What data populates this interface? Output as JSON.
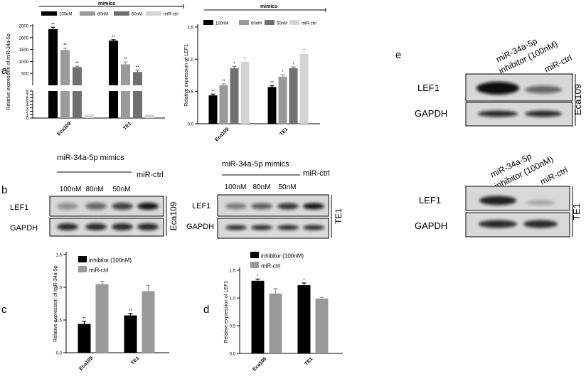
{
  "panels": {
    "a": "a",
    "b": "b",
    "c": "c",
    "d": "d",
    "e": "e"
  },
  "colors": {
    "100nM": "#000000",
    "80nM": "#9a9a9a",
    "50nM": "#707070",
    "ctrl": "#d4d4d4",
    "inhibitor": "#000000",
    "mir_ctrl": "#9a9a9a",
    "blot_bg": "#d8d8d8",
    "band": "#111111"
  },
  "chart_data": [
    {
      "type": "bar",
      "panel": "a-left",
      "header": "mimics",
      "ylabel": "Relative expression of miR-34a-5p",
      "categories": [
        "Eca109",
        "TE1"
      ],
      "broken_axis": true,
      "lower_ticks": [
        "0",
        "1",
        "2",
        "3",
        "4",
        "5",
        "6",
        "7",
        "8"
      ],
      "upper_ticks": [
        "0",
        "500",
        "1000",
        "1500",
        "2000",
        "2500"
      ],
      "series": [
        {
          "name": "100nM",
          "values": [
            2350,
            1870
          ],
          "errors": [
            80,
            40
          ],
          "stars": [
            "**",
            "**"
          ]
        },
        {
          "name": "80nM",
          "values": [
            1480,
            880
          ],
          "errors": [
            80,
            100
          ],
          "stars": [
            "**",
            "**"
          ]
        },
        {
          "name": "50nM",
          "values": [
            760,
            560
          ],
          "errors": [
            40,
            80
          ],
          "stars": [
            "**",
            "**"
          ]
        },
        {
          "name": "miR-ctrl",
          "values": [
            1.0,
            1.0
          ],
          "errors": [
            0.05,
            0.05
          ],
          "stars": [
            "",
            ""
          ]
        }
      ]
    },
    {
      "type": "bar",
      "panel": "a-right",
      "header": "mimics",
      "ylabel": "Relative expression of LEF1",
      "categories": [
        "Eca109",
        "TE1"
      ],
      "ylim": [
        0,
        1.5
      ],
      "ticks": [
        "0.0",
        "0.5",
        "1.0",
        "1.5"
      ],
      "series": [
        {
          "name": "100nM",
          "values": [
            0.44,
            0.57
          ],
          "errors": [
            0.02,
            0.02
          ],
          "stars": [
            "**",
            "**"
          ]
        },
        {
          "name": "80nM",
          "values": [
            0.6,
            0.73
          ],
          "errors": [
            0.02,
            0.03
          ],
          "stars": [
            "**",
            "*"
          ]
        },
        {
          "name": "50nM",
          "values": [
            0.86,
            0.86
          ],
          "errors": [
            0.03,
            0.02
          ],
          "stars": [
            "*",
            "*"
          ]
        },
        {
          "name": "miR-ctrl",
          "values": [
            0.96,
            1.08
          ],
          "errors": [
            0.07,
            0.08
          ],
          "stars": [
            "",
            ""
          ]
        }
      ]
    },
    {
      "type": "bar",
      "panel": "c",
      "ylabel": "Relative expression of miR-34a-5p",
      "categories": [
        "Eca109",
        "TE1"
      ],
      "ylim": [
        0,
        1.5
      ],
      "ticks": [
        "0.0",
        "0.5",
        "1.0",
        "1.5"
      ],
      "series": [
        {
          "name": "inhibitor (100nM)",
          "values": [
            0.44,
            0.57
          ],
          "errors": [
            0.04,
            0.03
          ],
          "stars": [
            "**",
            "**"
          ]
        },
        {
          "name": "miR-ctrl",
          "values": [
            1.05,
            0.94
          ],
          "errors": [
            0.04,
            0.09
          ],
          "stars": [
            "",
            ""
          ]
        }
      ]
    },
    {
      "type": "bar",
      "panel": "d",
      "ylabel": "Relative expression of LEF1",
      "categories": [
        "Eca109",
        "TE1"
      ],
      "ylim": [
        0,
        1.5
      ],
      "ticks": [
        "0.0",
        "0.5",
        "1.0",
        "1.5"
      ],
      "series": [
        {
          "name": "inhibitor (100nM)",
          "values": [
            1.31,
            1.23
          ],
          "errors": [
            0.03,
            0.04
          ],
          "stars": [
            "*",
            "*"
          ]
        },
        {
          "name": "miR-ctrl",
          "values": [
            1.08,
            0.99
          ],
          "errors": [
            0.09,
            0.02
          ],
          "stars": [
            "",
            ""
          ]
        }
      ]
    }
  ],
  "blots": {
    "b_left": {
      "header": "miR-34a-5p mimics",
      "ctrl": "miR-ctrl",
      "lanes": [
        "100nM",
        "80nM",
        "50nM"
      ],
      "rows": [
        "LEF1",
        "GAPDH"
      ],
      "cell": "Eca109",
      "lef1": [
        0.35,
        0.55,
        0.75,
        0.95
      ],
      "gapdh": [
        0.85,
        0.85,
        0.85,
        0.85
      ]
    },
    "b_right": {
      "header": "miR-34a-5p mimics",
      "ctrl": "miR-ctrl",
      "lanes": [
        "100nM",
        "80nM",
        "50nM"
      ],
      "rows": [
        "LEF1",
        "GAPDH"
      ],
      "cell": "TE1",
      "lef1": [
        0.45,
        0.6,
        0.8,
        0.95
      ],
      "gapdh": [
        0.85,
        0.85,
        0.85,
        0.85
      ]
    },
    "e_top": {
      "lane1a": "miR-34a-5p",
      "lane1b": "inhibitor (100nM)",
      "lane2": "miR-ctrl",
      "rows": [
        "LEF1",
        "GAPDH"
      ],
      "cell": "Eca109",
      "lef1": [
        1.0,
        0.55
      ],
      "gapdh": [
        0.85,
        0.85
      ]
    },
    "e_bottom": {
      "lane1a": "miR-34a-5p",
      "lane1b": "inhibitor (100nM)",
      "lane2": "miR-ctrl",
      "rows": [
        "LEF1",
        "GAPDH"
      ],
      "cell": "TE1",
      "lef1": [
        0.9,
        0.25
      ],
      "gapdh": [
        0.85,
        0.85
      ]
    }
  }
}
